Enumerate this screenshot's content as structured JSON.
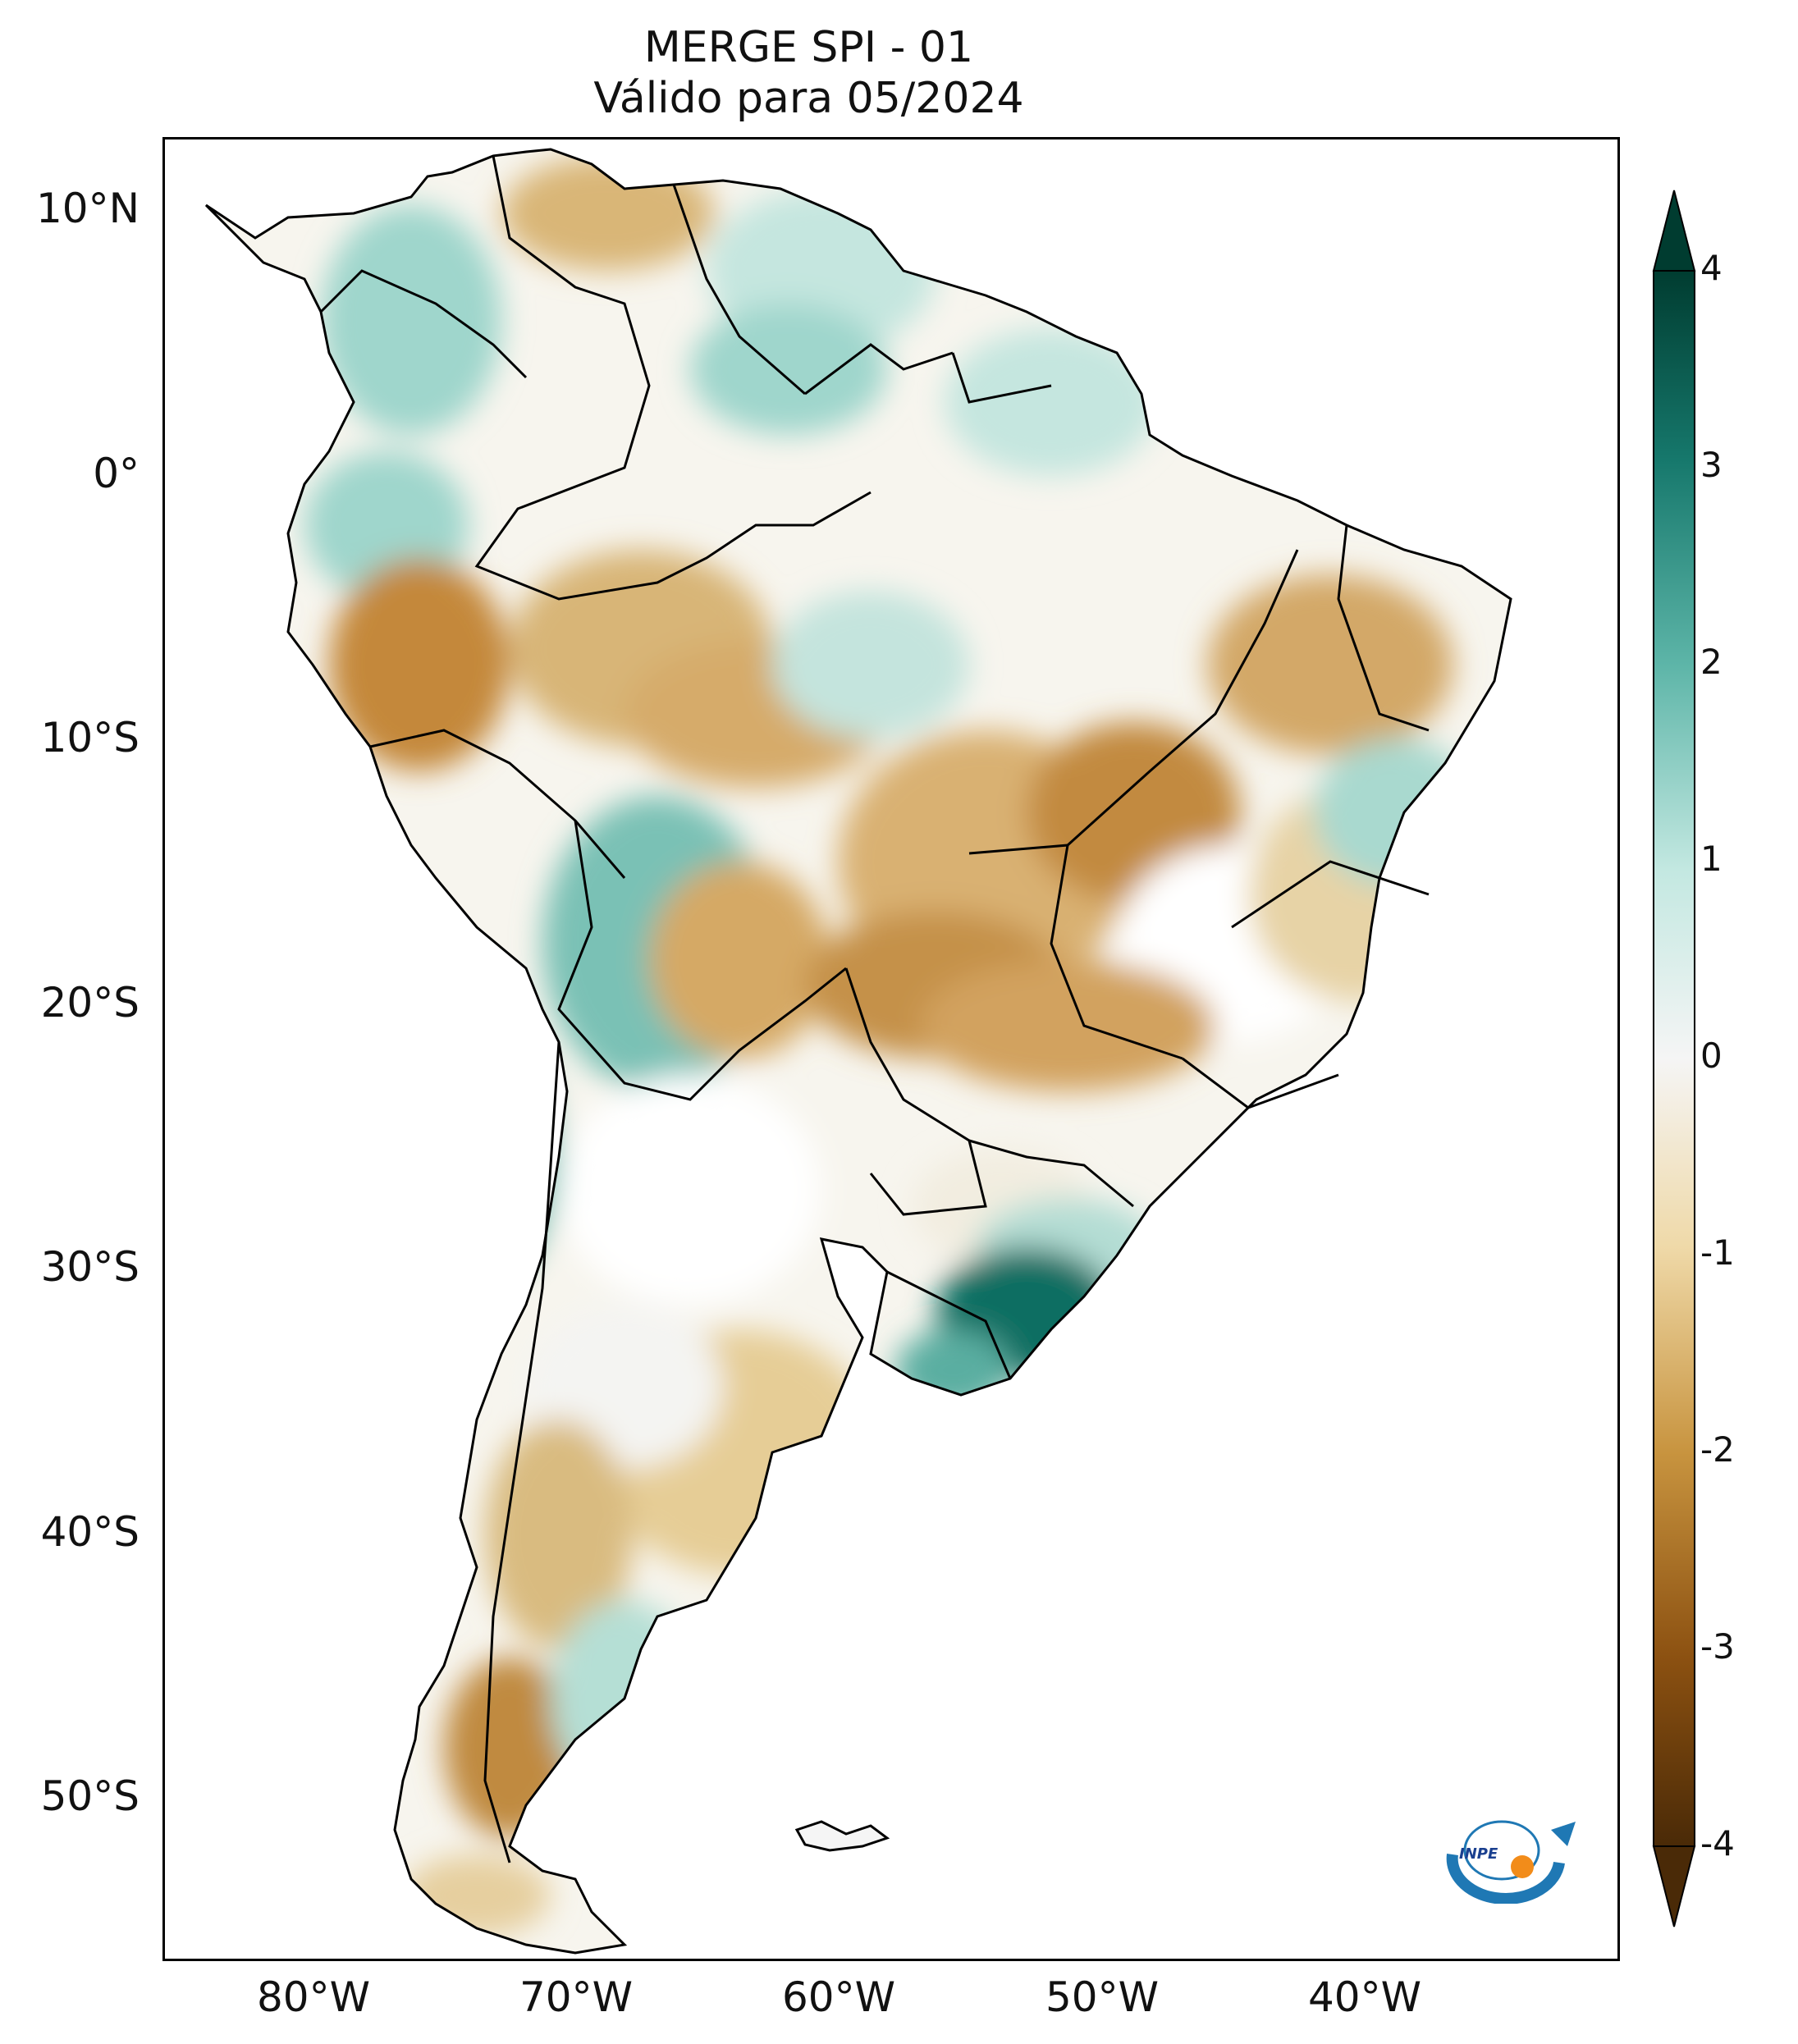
{
  "title": {
    "line1": "MERGE   SPI - 01",
    "line2": "Válido para 05/2024"
  },
  "axes": {
    "y_labels": [
      "10°N",
      "0°",
      "10°S",
      "20°S",
      "30°S",
      "40°S",
      "50°S"
    ],
    "x_labels": [
      "80°W",
      "70°W",
      "60°W",
      "50°W",
      "40°W"
    ]
  },
  "colorbar": {
    "ticks": [
      "4",
      "3",
      "2",
      "1",
      "0",
      "-1",
      "-2",
      "-3",
      "-4"
    ],
    "min": -4,
    "max": 4,
    "colors": {
      "dry_extreme": "#4a2a07",
      "dry_strong": "#8c5111",
      "dry_moderate": "#c8943f",
      "dry_mild": "#efd9a8",
      "neutral": "#f5f5f5",
      "wet_mild": "#c3e8e1",
      "wet_moderate": "#5db5a8",
      "wet_strong": "#16786c",
      "wet_extreme": "#003c30"
    }
  },
  "logo": {
    "text": "INPE"
  }
}
